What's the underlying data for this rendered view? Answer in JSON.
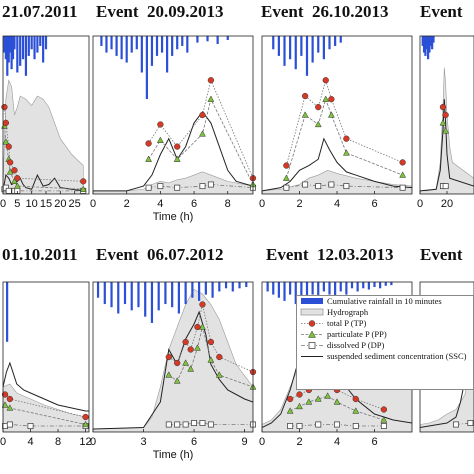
{
  "titles": [
    {
      "text": "21.07.2011"
    },
    {
      "text": "Event  20.09.2013"
    },
    {
      "text": "Event  26.10.2013"
    },
    {
      "text": "Event"
    },
    {
      "text": "01.10.2011"
    },
    {
      "text": "Event  06.07.2012"
    },
    {
      "text": "Event  12.03.2013"
    },
    {
      "text": "Event"
    }
  ],
  "legend": {
    "rain": "Cumulative rainfall in 10 minutes",
    "hydro": "Hydrograph",
    "tp": "total P (TP)",
    "pp": "particulate P (PP)",
    "dp": "dissolved P (DP)",
    "ssc": "suspended sediment concentration (SSC)"
  },
  "colors": {
    "rain": "#2b4fd6",
    "hydro_fill": "#e2e2e2",
    "hydro_edge": "#9a9a9a",
    "tp": "#d63a26",
    "pp": "#7cc23a",
    "dp": "#ffffff",
    "ssc": "#222222"
  },
  "chart_data": [
    {
      "type": "line",
      "title": "21.07.2011",
      "xlabel": "",
      "xlim": [
        0,
        30
      ],
      "xticks": [
        "0",
        "5",
        "10",
        "15",
        "20",
        "25"
      ],
      "ytop": 1.0,
      "rain": {
        "x": [
          0.5,
          1,
          1.5,
          2,
          2.5,
          3,
          3.5,
          4,
          5,
          6,
          7,
          8,
          9,
          10,
          11,
          12,
          13,
          14,
          15
        ],
        "v": [
          0.25,
          0.35,
          0.6,
          0.4,
          0.25,
          0.5,
          0.35,
          0.2,
          0.55,
          0.45,
          0.35,
          0.6,
          0.3,
          0.2,
          0.35,
          0.25,
          0.15,
          0.4,
          0.2
        ]
      },
      "hydro": {
        "x": [
          0,
          1,
          2,
          3,
          4,
          5,
          6,
          8,
          10,
          12,
          14,
          16,
          18,
          20,
          24,
          28
        ],
        "y": [
          0.05,
          0.6,
          0.72,
          0.68,
          0.5,
          0.55,
          0.62,
          0.6,
          0.56,
          0.62,
          0.6,
          0.55,
          0.45,
          0.35,
          0.25,
          0.18
        ]
      },
      "ssc": {
        "x": [
          0,
          1,
          2,
          3,
          4,
          5,
          6,
          7,
          8,
          10,
          12,
          14,
          16,
          18,
          20,
          24,
          28
        ],
        "y": [
          0.02,
          0.12,
          0.1,
          0.06,
          0.07,
          0.08,
          0.1,
          0.06,
          0.04,
          0.03,
          0.12,
          0.05,
          0.06,
          0.1,
          0.04,
          0.03,
          0.02
        ]
      },
      "tp": {
        "x": [
          0.5,
          1,
          2,
          2.5,
          4,
          5,
          28
        ],
        "y": [
          0.55,
          0.45,
          0.3,
          0.2,
          0.15,
          0.1,
          0.08
        ]
      },
      "pp": {
        "x": [
          0.5,
          1,
          2,
          2.5,
          4,
          5,
          28
        ],
        "y": [
          0.43,
          0.33,
          0.22,
          0.14,
          0.08,
          0.05,
          0.03
        ]
      },
      "dp": {
        "x": [
          0.5,
          1,
          2,
          4,
          5,
          28
        ],
        "y": [
          0.03,
          0.04,
          0.02,
          0.02,
          0.02,
          0.02
        ]
      }
    },
    {
      "type": "line",
      "title": "Event  20.09.2013",
      "xlabel": "Time (h)",
      "xlim": [
        0,
        9.5
      ],
      "xticks": [
        "0",
        "2",
        "4",
        "6",
        "8"
      ],
      "ytop": 1.0,
      "rain": {
        "x": [
          0.5,
          0.8,
          1.1,
          1.4,
          1.7,
          2,
          2.3,
          2.6,
          2.9,
          3.2,
          3.5,
          3.8,
          4.1,
          4.4,
          4.7,
          5,
          5.3,
          5.6,
          6.2,
          6.8,
          7.4,
          8
        ],
        "v": [
          0.15,
          0.25,
          0.2,
          0.3,
          0.35,
          0.4,
          0.25,
          0.2,
          0.55,
          0.95,
          0.45,
          0.3,
          0.25,
          0.55,
          0.3,
          0.2,
          0.15,
          0.25,
          0.1,
          0.08,
          0.12,
          0.06
        ]
      },
      "hydro": {
        "x": [
          0,
          2,
          3,
          3.5,
          4,
          4.5,
          5,
          5.5,
          6,
          6.5,
          7,
          7.5,
          8,
          9.5
        ],
        "y": [
          0.02,
          0.02,
          0.03,
          0.06,
          0.08,
          0.07,
          0.09,
          0.1,
          0.12,
          0.14,
          0.12,
          0.1,
          0.08,
          0.05
        ]
      },
      "ssc": {
        "x": [
          0,
          2,
          3,
          3.5,
          4,
          4.5,
          5,
          5.5,
          6,
          6.5,
          7,
          7.5,
          8,
          8.5,
          9.5
        ],
        "y": [
          0.02,
          0.02,
          0.05,
          0.12,
          0.25,
          0.35,
          0.22,
          0.3,
          0.45,
          0.52,
          0.45,
          0.3,
          0.15,
          0.08,
          0.05
        ]
      },
      "tp": {
        "x": [
          3.3,
          4,
          5,
          6.5,
          7,
          9.5
        ],
        "y": [
          0.32,
          0.44,
          0.3,
          0.5,
          0.72,
          0.1
        ]
      },
      "pp": {
        "x": [
          3.3,
          4,
          5,
          6.5,
          7,
          9.5
        ],
        "y": [
          0.22,
          0.34,
          0.22,
          0.38,
          0.6,
          0.06
        ]
      },
      "dp": {
        "x": [
          3.3,
          4,
          5,
          6.5,
          7,
          9.5
        ],
        "y": [
          0.04,
          0.05,
          0.04,
          0.05,
          0.06,
          0.04
        ]
      }
    },
    {
      "type": "line",
      "title": "Event  26.10.2013",
      "xlabel": "",
      "xlim": [
        0,
        8
      ],
      "xticks": [
        "0",
        "2",
        "4",
        "6"
      ],
      "ytop": 1.0,
      "rain": {
        "x": [
          0.6,
          0.9,
          1.2,
          1.5,
          1.8,
          2.1,
          2.4,
          2.7,
          3,
          3.3,
          3.6,
          3.9,
          4.2
        ],
        "v": [
          0.2,
          0.3,
          0.45,
          0.35,
          0.5,
          0.3,
          0.6,
          0.4,
          0.25,
          0.35,
          0.2,
          0.15,
          0.1
        ]
      },
      "hydro": {
        "x": [
          0,
          1,
          2,
          2.5,
          3,
          3.5,
          4,
          5,
          6,
          7,
          8
        ],
        "y": [
          0.02,
          0.03,
          0.06,
          0.1,
          0.12,
          0.15,
          0.13,
          0.1,
          0.08,
          0.06,
          0.05
        ]
      },
      "ssc": {
        "x": [
          0,
          1,
          1.5,
          2,
          2.5,
          3,
          3.3,
          3.6,
          4,
          4.5,
          5,
          6,
          7,
          8
        ],
        "y": [
          0.02,
          0.04,
          0.08,
          0.15,
          0.18,
          0.22,
          0.35,
          0.28,
          0.2,
          0.14,
          0.12,
          0.08,
          0.05,
          0.04
        ]
      },
      "tp": {
        "x": [
          1.3,
          2.3,
          3,
          3.4,
          3.7,
          4.5,
          7.5
        ],
        "y": [
          0.18,
          0.62,
          0.55,
          0.72,
          0.6,
          0.35,
          0.2
        ]
      },
      "pp": {
        "x": [
          1.3,
          2.3,
          3,
          3.4,
          3.7,
          4.5,
          7.5
        ],
        "y": [
          0.1,
          0.5,
          0.44,
          0.6,
          0.5,
          0.26,
          0.12
        ]
      },
      "dp": {
        "x": [
          1.3,
          2.3,
          3,
          3.7,
          4.5,
          7.5
        ],
        "y": [
          0.04,
          0.06,
          0.05,
          0.06,
          0.05,
          0.04
        ]
      }
    },
    {
      "type": "line",
      "title": "Event",
      "xlabel": "",
      "xlim": [
        0,
        40
      ],
      "xticks": [
        "0",
        "20"
      ],
      "ytop": 1.0,
      "rain": {
        "x": [
          2,
          3,
          4,
          5,
          6,
          7,
          8,
          9,
          10
        ],
        "v": [
          0.15,
          0.25,
          0.3,
          0.2,
          0.35,
          0.25,
          0.15,
          0.2,
          0.1
        ]
      },
      "hydro": {
        "x": [
          0,
          5,
          12,
          15,
          17,
          18,
          19,
          20,
          22,
          24,
          40
        ],
        "y": [
          0.02,
          0.02,
          0.03,
          0.2,
          0.55,
          0.8,
          0.7,
          0.5,
          0.3,
          0.2,
          0.1
        ]
      },
      "ssc": {
        "x": [
          0,
          12,
          15,
          17,
          18,
          19,
          20,
          22,
          40
        ],
        "y": [
          0.02,
          0.03,
          0.15,
          0.4,
          0.6,
          0.45,
          0.25,
          0.1,
          0.05
        ]
      },
      "tp": {
        "x": [
          17,
          19
        ],
        "y": [
          0.55,
          0.5
        ]
      },
      "pp": {
        "x": [
          17,
          19
        ],
        "y": [
          0.45,
          0.4
        ]
      },
      "dp": {
        "x": [
          17,
          19
        ],
        "y": [
          0.05,
          0.05
        ]
      }
    },
    {
      "type": "line",
      "title": "01.10.2011",
      "xlabel": "",
      "xlim": [
        0,
        12.5
      ],
      "xticks": [
        "0",
        "4",
        "8",
        "12"
      ],
      "ytop": 1.0,
      "rain": {
        "x": [
          0.6
        ],
        "v": [
          0.95
        ]
      },
      "hydro": {
        "x": [
          0,
          1,
          2,
          4,
          6,
          8,
          10,
          12,
          12.5
        ],
        "y": [
          0.3,
          0.32,
          0.26,
          0.22,
          0.18,
          0.15,
          0.12,
          0.1,
          0.1
        ]
      },
      "ssc": {
        "x": [
          0,
          0.5,
          1,
          2,
          3,
          4,
          5,
          6,
          7,
          8,
          9,
          10,
          11,
          12,
          12.5
        ],
        "y": [
          0.3,
          0.4,
          0.46,
          0.32,
          0.28,
          0.26,
          0.24,
          0.22,
          0.2,
          0.18,
          0.17,
          0.16,
          0.15,
          0.14,
          0.14
        ]
      },
      "tp": {
        "x": [
          0.3,
          1,
          12
        ],
        "y": [
          0.25,
          0.22,
          0.1
        ]
      },
      "pp": {
        "x": [
          0.3,
          1,
          12
        ],
        "y": [
          0.18,
          0.16,
          0.05
        ]
      },
      "dp": {
        "x": [
          0.3,
          1,
          4,
          12
        ],
        "y": [
          0.04,
          0.05,
          0.04,
          0.04
        ]
      }
    },
    {
      "type": "line",
      "title": "Event  06.07.2012",
      "xlabel": "Time (h)",
      "xlim": [
        0,
        9.5
      ],
      "xticks": [
        "0",
        "3",
        "6",
        "9"
      ],
      "ytop": 1.0,
      "rain": {
        "x": [
          0.3,
          0.7,
          1.1,
          1.5,
          1.9,
          2.3,
          2.7,
          3.1,
          3.5,
          3.9,
          4.3,
          4.7,
          5.1,
          5.5,
          5.9,
          6.3,
          6.7,
          7.1,
          7.5,
          7.9,
          8.3,
          8.7,
          9.1
        ],
        "v": [
          0.25,
          0.35,
          0.4,
          0.5,
          0.35,
          0.45,
          0.4,
          0.55,
          0.65,
          0.45,
          0.35,
          0.4,
          0.5,
          0.35,
          0.25,
          0.3,
          0.2,
          0.25,
          0.15,
          0.1,
          0.15,
          0.1,
          0.08
        ]
      },
      "hydro": {
        "x": [
          0,
          3,
          3.5,
          4,
          4.5,
          5,
          5.5,
          6,
          6.5,
          7,
          7.5,
          8,
          8.5,
          9.5
        ],
        "y": [
          0.02,
          0.03,
          0.1,
          0.3,
          0.55,
          0.7,
          0.85,
          0.95,
          0.92,
          0.85,
          0.75,
          0.6,
          0.45,
          0.3
        ]
      },
      "ssc": {
        "x": [
          0,
          3,
          4,
          4.5,
          5,
          5.5,
          6,
          6.3,
          6.7,
          7,
          7.5,
          8,
          9,
          9.5
        ],
        "y": [
          0.02,
          0.03,
          0.2,
          0.55,
          0.45,
          0.62,
          0.72,
          0.8,
          0.65,
          0.45,
          0.35,
          0.28,
          0.22,
          0.2
        ]
      },
      "tp": {
        "x": [
          4.5,
          5,
          5.5,
          5.8,
          6.2,
          6.5,
          7,
          7.5,
          9.5
        ],
        "y": [
          0.5,
          0.46,
          0.6,
          0.55,
          0.7,
          0.85,
          0.6,
          0.5,
          0.4
        ]
      },
      "pp": {
        "x": [
          4.5,
          5,
          5.5,
          5.8,
          6.2,
          6.5,
          7,
          7.5,
          9.5
        ],
        "y": [
          0.38,
          0.34,
          0.46,
          0.42,
          0.56,
          0.7,
          0.48,
          0.38,
          0.3
        ]
      },
      "dp": {
        "x": [
          4.5,
          5,
          5.5,
          6,
          6.5,
          7,
          9.5
        ],
        "y": [
          0.05,
          0.05,
          0.05,
          0.06,
          0.06,
          0.05,
          0.05
        ]
      }
    },
    {
      "type": "line",
      "title": "Event  12.03.2013",
      "xlabel": "",
      "xlim": [
        0,
        8
      ],
      "xticks": [
        "0",
        "2",
        "4",
        "6"
      ],
      "ytop": 1.0,
      "rain": {
        "x": [
          0.3,
          0.6,
          0.9,
          1.2,
          1.5,
          1.8,
          2.1,
          2.4,
          2.7,
          3,
          3.3,
          3.6,
          3.9,
          4.2,
          4.5,
          4.8,
          5.1,
          5.4,
          5.7,
          6,
          6.3,
          6.6,
          6.9
        ],
        "v": [
          0.15,
          0.2,
          0.25,
          0.3,
          0.2,
          0.35,
          0.25,
          0.3,
          0.2,
          0.25,
          0.15,
          0.2,
          0.25,
          0.15,
          0.2,
          0.1,
          0.15,
          0.1,
          0.12,
          0.08,
          0.1,
          0.06,
          0.05
        ]
      },
      "hydro": {
        "x": [
          0,
          0.5,
          1,
          1.5,
          2,
          2.5,
          3,
          3.5,
          4,
          5,
          6,
          7,
          8
        ],
        "y": [
          0.05,
          0.08,
          0.15,
          0.3,
          0.45,
          0.55,
          0.58,
          0.55,
          0.52,
          0.45,
          0.38,
          0.32,
          0.28
        ]
      },
      "ssc": {
        "x": [
          0,
          0.5,
          1,
          1.5,
          2,
          2.3,
          2.6,
          3,
          3.3,
          3.7,
          4,
          4.5,
          5,
          6,
          7,
          8
        ],
        "y": [
          0.03,
          0.06,
          0.12,
          0.28,
          0.5,
          0.42,
          0.35,
          0.42,
          0.55,
          0.5,
          0.42,
          0.3,
          0.22,
          0.12,
          0.08,
          0.06
        ]
      },
      "tp": {
        "x": [
          1.5,
          2,
          2.5,
          3,
          3.5,
          4,
          5,
          6.5
        ],
        "y": [
          0.22,
          0.25,
          0.28,
          0.3,
          0.32,
          0.28,
          0.22,
          0.15
        ]
      },
      "pp": {
        "x": [
          1.5,
          2,
          2.5,
          3,
          3.5,
          4,
          5,
          6.5
        ],
        "y": [
          0.14,
          0.17,
          0.2,
          0.22,
          0.24,
          0.2,
          0.14,
          0.08
        ]
      },
      "dp": {
        "x": [
          1.5,
          2,
          3,
          4,
          5,
          6.5
        ],
        "y": [
          0.04,
          0.04,
          0.05,
          0.05,
          0.04,
          0.04
        ]
      }
    },
    {
      "type": "line",
      "title": "Event",
      "xlabel": "",
      "xlim": [
        0,
        6
      ],
      "xticks": [],
      "ytop": 1.0,
      "rain": {
        "x": [],
        "v": []
      },
      "hydro": {
        "x": [
          0,
          1,
          2,
          3,
          4,
          5,
          6
        ],
        "y": [
          0.05,
          0.06,
          0.08,
          0.12,
          0.15,
          0.25,
          0.55
        ]
      },
      "ssc": {
        "x": [
          0,
          1,
          2,
          3,
          4,
          4.5,
          5,
          5.5,
          6
        ],
        "y": [
          0.03,
          0.04,
          0.05,
          0.06,
          0.1,
          0.2,
          0.35,
          0.5,
          0.6
        ]
      },
      "tp": {
        "x": [
          5.6
        ],
        "y": [
          0.45
        ]
      },
      "pp": {
        "x": [
          5.6
        ],
        "y": [
          0.35
        ]
      },
      "dp": {
        "x": [
          4,
          5.6
        ],
        "y": [
          0.05,
          0.06
        ]
      }
    }
  ]
}
